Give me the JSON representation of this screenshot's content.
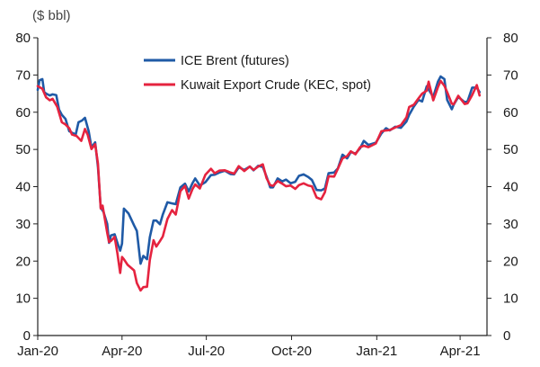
{
  "chart_data": {
    "type": "line",
    "ylabel": "($ bbl)",
    "ylim": [
      0,
      80
    ],
    "yticks": [
      0,
      10,
      20,
      30,
      40,
      50,
      60,
      70,
      80
    ],
    "xlim": [
      "2020-01-01",
      "2021-04-30"
    ],
    "xticks": [
      {
        "label": "Jan-20",
        "date": "2020-01-01"
      },
      {
        "label": "Apr-20",
        "date": "2020-04-01"
      },
      {
        "label": "Jul-20",
        "date": "2020-07-01"
      },
      {
        "label": "Oct-20",
        "date": "2020-10-01"
      },
      {
        "label": "Jan-21",
        "date": "2021-01-01"
      },
      {
        "label": "Apr-21",
        "date": "2021-04-01"
      }
    ],
    "grid": false,
    "legend_position": "top-center",
    "series": [
      {
        "name": "ICE Brent (futures)",
        "color": "#1f5aa6",
        "points": [
          [
            "2020-01-01",
            66.0
          ],
          [
            "2020-01-03",
            68.6
          ],
          [
            "2020-01-06",
            68.9
          ],
          [
            "2020-01-08",
            65.4
          ],
          [
            "2020-01-10",
            65.0
          ],
          [
            "2020-01-14",
            64.5
          ],
          [
            "2020-01-17",
            64.8
          ],
          [
            "2020-01-21",
            64.6
          ],
          [
            "2020-01-24",
            60.7
          ],
          [
            "2020-01-27",
            59.3
          ],
          [
            "2020-01-31",
            58.2
          ],
          [
            "2020-02-04",
            54.9
          ],
          [
            "2020-02-07",
            54.5
          ],
          [
            "2020-02-11",
            54.0
          ],
          [
            "2020-02-14",
            57.3
          ],
          [
            "2020-02-18",
            57.8
          ],
          [
            "2020-02-21",
            58.5
          ],
          [
            "2020-02-25",
            54.9
          ],
          [
            "2020-02-28",
            50.5
          ],
          [
            "2020-03-03",
            51.9
          ],
          [
            "2020-03-06",
            45.3
          ],
          [
            "2020-03-09",
            34.4
          ],
          [
            "2020-03-12",
            33.2
          ],
          [
            "2020-03-16",
            30.0
          ],
          [
            "2020-03-18",
            24.9
          ],
          [
            "2020-03-20",
            26.9
          ],
          [
            "2020-03-24",
            27.2
          ],
          [
            "2020-03-27",
            24.9
          ],
          [
            "2020-03-30",
            22.8
          ],
          [
            "2020-04-01",
            24.7
          ],
          [
            "2020-04-03",
            34.1
          ],
          [
            "2020-04-08",
            32.8
          ],
          [
            "2020-04-14",
            29.6
          ],
          [
            "2020-04-17",
            28.1
          ],
          [
            "2020-04-21",
            19.3
          ],
          [
            "2020-04-24",
            21.4
          ],
          [
            "2020-04-28",
            20.5
          ],
          [
            "2020-05-01",
            26.4
          ],
          [
            "2020-05-05",
            30.9
          ],
          [
            "2020-05-08",
            30.9
          ],
          [
            "2020-05-12",
            29.9
          ],
          [
            "2020-05-15",
            32.5
          ],
          [
            "2020-05-20",
            35.8
          ],
          [
            "2020-05-25",
            35.5
          ],
          [
            "2020-05-29",
            35.3
          ],
          [
            "2020-06-03",
            39.8
          ],
          [
            "2020-06-08",
            40.8
          ],
          [
            "2020-06-12",
            38.7
          ],
          [
            "2020-06-16",
            40.9
          ],
          [
            "2020-06-19",
            42.2
          ],
          [
            "2020-06-24",
            40.3
          ],
          [
            "2020-06-30",
            41.2
          ],
          [
            "2020-07-06",
            43.1
          ],
          [
            "2020-07-10",
            43.2
          ],
          [
            "2020-07-15",
            43.8
          ],
          [
            "2020-07-21",
            44.3
          ],
          [
            "2020-07-27",
            43.4
          ],
          [
            "2020-07-31",
            43.3
          ],
          [
            "2020-08-05",
            45.2
          ],
          [
            "2020-08-11",
            44.5
          ],
          [
            "2020-08-17",
            45.4
          ],
          [
            "2020-08-21",
            44.4
          ],
          [
            "2020-08-26",
            45.6
          ],
          [
            "2020-08-31",
            45.3
          ],
          [
            "2020-09-04",
            42.7
          ],
          [
            "2020-09-08",
            39.8
          ],
          [
            "2020-09-11",
            39.8
          ],
          [
            "2020-09-16",
            42.2
          ],
          [
            "2020-09-21",
            41.4
          ],
          [
            "2020-09-25",
            41.9
          ],
          [
            "2020-09-30",
            40.9
          ],
          [
            "2020-10-05",
            41.3
          ],
          [
            "2020-10-09",
            42.9
          ],
          [
            "2020-10-14",
            43.3
          ],
          [
            "2020-10-19",
            42.6
          ],
          [
            "2020-10-23",
            41.8
          ],
          [
            "2020-10-28",
            39.1
          ],
          [
            "2020-11-02",
            39.0
          ],
          [
            "2020-11-06",
            39.5
          ],
          [
            "2020-11-10",
            43.6
          ],
          [
            "2020-11-16",
            43.8
          ],
          [
            "2020-11-20",
            44.9
          ],
          [
            "2020-11-25",
            48.6
          ],
          [
            "2020-11-30",
            47.6
          ],
          [
            "2020-12-04",
            49.3
          ],
          [
            "2020-12-09",
            48.9
          ],
          [
            "2020-12-14",
            50.3
          ],
          [
            "2020-12-18",
            52.3
          ],
          [
            "2020-12-23",
            51.2
          ],
          [
            "2020-12-31",
            51.8
          ],
          [
            "2021-01-06",
            54.3
          ],
          [
            "2021-01-11",
            55.7
          ],
          [
            "2021-01-15",
            55.1
          ],
          [
            "2021-01-21",
            56.1
          ],
          [
            "2021-01-27",
            55.8
          ],
          [
            "2021-02-02",
            57.5
          ],
          [
            "2021-02-05",
            59.3
          ],
          [
            "2021-02-10",
            61.5
          ],
          [
            "2021-02-15",
            63.3
          ],
          [
            "2021-02-19",
            62.9
          ],
          [
            "2021-02-24",
            67.0
          ],
          [
            "2021-02-26",
            66.1
          ],
          [
            "2021-03-03",
            64.1
          ],
          [
            "2021-03-08",
            68.2
          ],
          [
            "2021-03-11",
            69.6
          ],
          [
            "2021-03-15",
            68.9
          ],
          [
            "2021-03-18",
            63.3
          ],
          [
            "2021-03-23",
            60.8
          ],
          [
            "2021-03-25",
            62.0
          ],
          [
            "2021-03-30",
            64.1
          ],
          [
            "2021-04-06",
            62.7
          ],
          [
            "2021-04-09",
            62.9
          ],
          [
            "2021-04-14",
            66.6
          ],
          [
            "2021-04-19",
            66.6
          ],
          [
            "2021-04-22",
            65.4
          ]
        ]
      },
      {
        "name": "Kuwait Export Crude (KEC, spot)",
        "color": "#e5233f",
        "points": [
          [
            "2020-01-01",
            67.0
          ],
          [
            "2020-01-06",
            66.3
          ],
          [
            "2020-01-10",
            64.0
          ],
          [
            "2020-01-14",
            63.2
          ],
          [
            "2020-01-17",
            63.6
          ],
          [
            "2020-01-22",
            61.5
          ],
          [
            "2020-01-27",
            57.3
          ],
          [
            "2020-01-31",
            56.7
          ],
          [
            "2020-02-04",
            55.7
          ],
          [
            "2020-02-07",
            54.0
          ],
          [
            "2020-02-12",
            53.6
          ],
          [
            "2020-02-17",
            52.3
          ],
          [
            "2020-02-21",
            55.5
          ],
          [
            "2020-02-24",
            53.9
          ],
          [
            "2020-02-28",
            50.1
          ],
          [
            "2020-03-03",
            51.4
          ],
          [
            "2020-03-06",
            46.2
          ],
          [
            "2020-03-09",
            34.1
          ],
          [
            "2020-03-11",
            34.9
          ],
          [
            "2020-03-16",
            27.6
          ],
          [
            "2020-03-18",
            25.1
          ],
          [
            "2020-03-20",
            25.4
          ],
          [
            "2020-03-24",
            26.5
          ],
          [
            "2020-03-27",
            22.1
          ],
          [
            "2020-03-30",
            16.8
          ],
          [
            "2020-04-01",
            21.1
          ],
          [
            "2020-04-03",
            20.5
          ],
          [
            "2020-04-07",
            19.0
          ],
          [
            "2020-04-14",
            17.5
          ],
          [
            "2020-04-17",
            14.1
          ],
          [
            "2020-04-21",
            12.1
          ],
          [
            "2020-04-24",
            13.0
          ],
          [
            "2020-04-28",
            13.1
          ],
          [
            "2020-05-01",
            20.3
          ],
          [
            "2020-05-05",
            25.6
          ],
          [
            "2020-05-08",
            23.9
          ],
          [
            "2020-05-12",
            25.4
          ],
          [
            "2020-05-15",
            26.6
          ],
          [
            "2020-05-20",
            31.3
          ],
          [
            "2020-05-25",
            33.7
          ],
          [
            "2020-05-29",
            32.5
          ],
          [
            "2020-06-03",
            38.8
          ],
          [
            "2020-06-08",
            40.2
          ],
          [
            "2020-06-12",
            36.8
          ],
          [
            "2020-06-16",
            39.3
          ],
          [
            "2020-06-19",
            40.6
          ],
          [
            "2020-06-24",
            39.5
          ],
          [
            "2020-06-30",
            43.2
          ],
          [
            "2020-07-06",
            44.8
          ],
          [
            "2020-07-10",
            43.6
          ],
          [
            "2020-07-15",
            44.3
          ],
          [
            "2020-07-21",
            44.4
          ],
          [
            "2020-07-27",
            43.8
          ],
          [
            "2020-07-31",
            43.5
          ],
          [
            "2020-08-05",
            45.5
          ],
          [
            "2020-08-11",
            44.2
          ],
          [
            "2020-08-17",
            45.4
          ],
          [
            "2020-08-21",
            44.5
          ],
          [
            "2020-08-26",
            45.4
          ],
          [
            "2020-08-31",
            46.0
          ],
          [
            "2020-09-04",
            42.3
          ],
          [
            "2020-09-08",
            40.4
          ],
          [
            "2020-09-11",
            40.2
          ],
          [
            "2020-09-16",
            41.5
          ],
          [
            "2020-09-21",
            40.8
          ],
          [
            "2020-09-25",
            40.1
          ],
          [
            "2020-09-30",
            40.3
          ],
          [
            "2020-10-05",
            39.4
          ],
          [
            "2020-10-09",
            40.4
          ],
          [
            "2020-10-14",
            40.9
          ],
          [
            "2020-10-19",
            40.3
          ],
          [
            "2020-10-23",
            40.1
          ],
          [
            "2020-10-28",
            37.1
          ],
          [
            "2020-11-02",
            36.6
          ],
          [
            "2020-11-06",
            38.5
          ],
          [
            "2020-11-10",
            42.8
          ],
          [
            "2020-11-16",
            42.7
          ],
          [
            "2020-11-20",
            44.8
          ],
          [
            "2020-11-25",
            47.6
          ],
          [
            "2020-11-30",
            48.2
          ],
          [
            "2020-12-04",
            49.5
          ],
          [
            "2020-12-09",
            48.7
          ],
          [
            "2020-12-14",
            50.6
          ],
          [
            "2020-12-18",
            51.0
          ],
          [
            "2020-12-23",
            50.6
          ],
          [
            "2020-12-31",
            51.6
          ],
          [
            "2021-01-06",
            54.9
          ],
          [
            "2021-01-11",
            55.1
          ],
          [
            "2021-01-15",
            55.2
          ],
          [
            "2021-01-21",
            55.9
          ],
          [
            "2021-01-27",
            56.5
          ],
          [
            "2021-02-02",
            58.6
          ],
          [
            "2021-02-05",
            61.4
          ],
          [
            "2021-02-10",
            62.0
          ],
          [
            "2021-02-15",
            63.7
          ],
          [
            "2021-02-19",
            65.0
          ],
          [
            "2021-02-24",
            65.8
          ],
          [
            "2021-02-26",
            68.2
          ],
          [
            "2021-03-03",
            63.2
          ],
          [
            "2021-03-08",
            66.7
          ],
          [
            "2021-03-11",
            68.4
          ],
          [
            "2021-03-15",
            67.1
          ],
          [
            "2021-03-18",
            65.4
          ],
          [
            "2021-03-23",
            62.3
          ],
          [
            "2021-03-25",
            62.1
          ],
          [
            "2021-03-30",
            64.4
          ],
          [
            "2021-04-06",
            62.2
          ],
          [
            "2021-04-09",
            62.4
          ],
          [
            "2021-04-14",
            64.6
          ],
          [
            "2021-04-19",
            67.3
          ],
          [
            "2021-04-22",
            64.5
          ]
        ]
      }
    ]
  }
}
